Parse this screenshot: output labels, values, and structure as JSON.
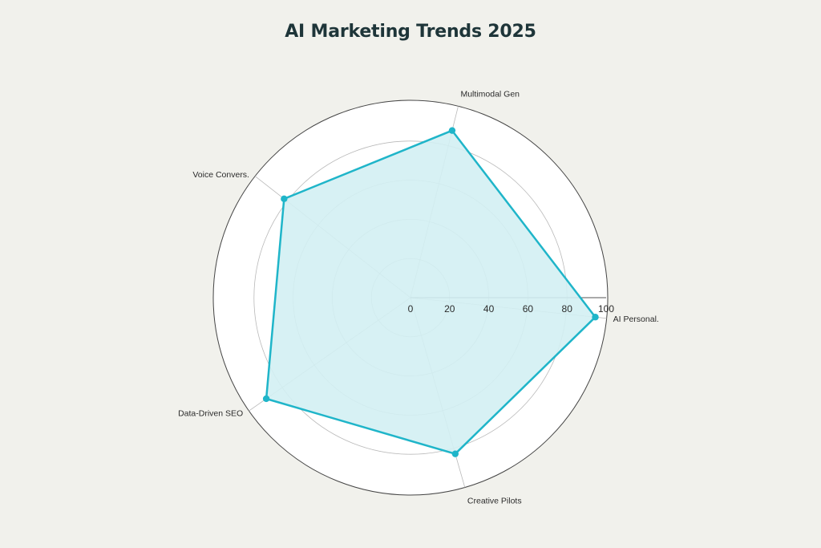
{
  "chart_data": {
    "type": "radar",
    "title": "AI Marketing Trends 2025",
    "categories": [
      "AI Personal.",
      "Multimodal Gen",
      "Voice Convers.",
      "Data-Driven SEO",
      "Creative Pilots"
    ],
    "series": [
      {
        "values": [
          95,
          88,
          82,
          90,
          83
        ]
      }
    ],
    "rlim": [
      0,
      100
    ],
    "radial_ticks": [
      "0",
      "20",
      "40",
      "60",
      "80",
      "100"
    ],
    "grid": true,
    "legend": "none"
  },
  "colors": {
    "background": "#f1f1ec",
    "plot_background": "#ffffff",
    "series_line": "#1fb5c9",
    "series_fill": "#d3eff3",
    "grid": "#b9b9b9",
    "outer_ring": "#444444"
  }
}
